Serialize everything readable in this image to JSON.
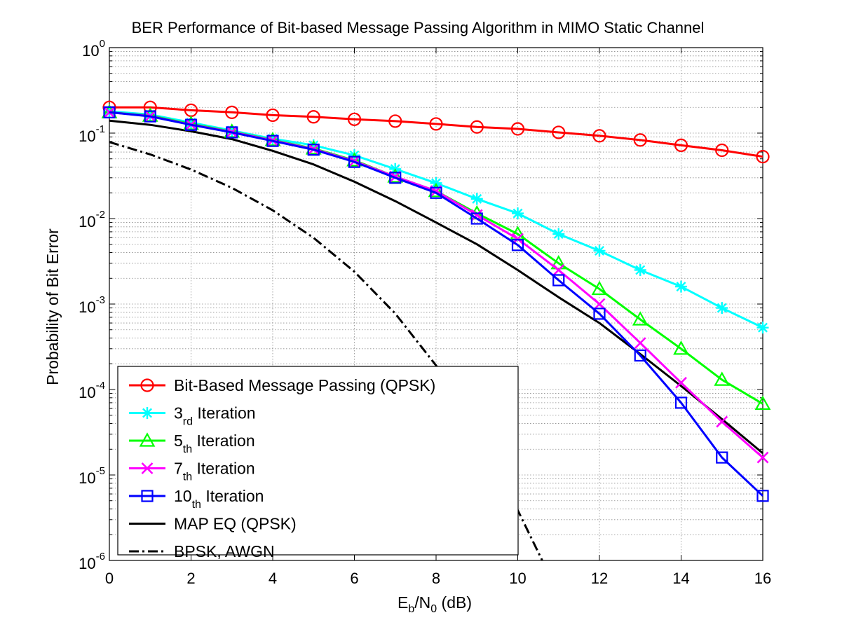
{
  "chart_data": {
    "type": "line",
    "title": "BER Performance of Bit-based Message Passing Algorithm in MIMO Static Channel",
    "xlabel": {
      "main1": "E",
      "sub1": "b",
      "main2": "/N",
      "sub2": "0",
      "main3": " (dB)"
    },
    "ylabel": "Probability of Bit Error",
    "xlim": [
      0,
      16
    ],
    "ylim": [
      1e-06,
      1
    ],
    "y_scale": "log",
    "grid": "major and minor, dotted",
    "x_ticks": [
      {
        "value": 0,
        "label": "0"
      },
      {
        "value": 2,
        "label": "2"
      },
      {
        "value": 4,
        "label": "4"
      },
      {
        "value": 6,
        "label": "6"
      },
      {
        "value": 8,
        "label": "8"
      },
      {
        "value": 10,
        "label": "10"
      },
      {
        "value": 12,
        "label": "12"
      },
      {
        "value": 14,
        "label": "14"
      },
      {
        "value": 16,
        "label": "16"
      }
    ],
    "y_ticks": [
      {
        "value": 1,
        "base": "10",
        "exp": "0"
      },
      {
        "value": 0.1,
        "base": "10",
        "exp": "-1"
      },
      {
        "value": 0.01,
        "base": "10",
        "exp": "-2"
      },
      {
        "value": 0.001,
        "base": "10",
        "exp": "-3"
      },
      {
        "value": 0.0001,
        "base": "10",
        "exp": "-4"
      },
      {
        "value": 1e-05,
        "base": "10",
        "exp": "-5"
      },
      {
        "value": 1e-06,
        "base": "10",
        "exp": "-6"
      }
    ],
    "legend_placement": "lower-left",
    "series": [
      {
        "id": "bbmp",
        "legend_main": "Bit-Based Message Passing (QPSK)",
        "legend_sub": "",
        "legend_tail": "",
        "color": "#ff0000",
        "marker": "circle",
        "dash": "solid",
        "x": [
          0,
          1,
          2,
          3,
          4,
          5,
          6,
          7,
          8,
          9,
          10,
          11,
          12,
          13,
          14,
          15,
          16
        ],
        "y": [
          0.2,
          0.2,
          0.185,
          0.175,
          0.162,
          0.155,
          0.145,
          0.138,
          0.128,
          0.118,
          0.112,
          0.102,
          0.093,
          0.083,
          0.072,
          0.063,
          0.053
        ]
      },
      {
        "id": "it3",
        "legend_main": "3",
        "legend_sub": "rd",
        "legend_tail": " Iteration",
        "color": "#00ffff",
        "marker": "asterisk",
        "dash": "solid",
        "x": [
          0,
          1,
          2,
          3,
          4,
          5,
          6,
          7,
          8,
          9,
          10,
          11,
          12,
          13,
          14,
          15,
          16
        ],
        "y": [
          0.18,
          0.165,
          0.133,
          0.107,
          0.086,
          0.072,
          0.055,
          0.038,
          0.026,
          0.017,
          0.0115,
          0.0066,
          0.0042,
          0.0025,
          0.0016,
          0.0009,
          0.00053
        ]
      },
      {
        "id": "it5",
        "legend_main": "5",
        "legend_sub": "th",
        "legend_tail": " Iteration",
        "color": "#00ff00",
        "marker": "triangle",
        "dash": "solid",
        "x": [
          0,
          1,
          2,
          3,
          4,
          5,
          6,
          7,
          8,
          9,
          10,
          11,
          12,
          13,
          14,
          15,
          16
        ],
        "y": [
          0.175,
          0.16,
          0.128,
          0.104,
          0.083,
          0.066,
          0.048,
          0.031,
          0.021,
          0.0115,
          0.0066,
          0.003,
          0.0015,
          0.00066,
          0.0003,
          0.00013,
          6.8e-05
        ]
      },
      {
        "id": "it7",
        "legend_main": "7",
        "legend_sub": "th",
        "legend_tail": " Iteration",
        "color": "#ff00ff",
        "marker": "x",
        "dash": "solid",
        "x": [
          0,
          1,
          2,
          3,
          4,
          5,
          6,
          7,
          8,
          9,
          10,
          11,
          12,
          13,
          14,
          15,
          16
        ],
        "y": [
          0.175,
          0.158,
          0.126,
          0.103,
          0.082,
          0.065,
          0.047,
          0.031,
          0.021,
          0.011,
          0.0058,
          0.0025,
          0.001,
          0.00035,
          0.00012,
          4.2e-05,
          1.6e-05
        ]
      },
      {
        "id": "it10",
        "legend_main": "10",
        "legend_sub": "th",
        "legend_tail": " Iteration",
        "color": "#0000ff",
        "marker": "square",
        "dash": "solid",
        "x": [
          0,
          1,
          2,
          3,
          4,
          5,
          6,
          7,
          8,
          9,
          10,
          11,
          12,
          13,
          14,
          15,
          16
        ],
        "y": [
          0.175,
          0.157,
          0.125,
          0.102,
          0.081,
          0.064,
          0.046,
          0.03,
          0.02,
          0.01,
          0.0049,
          0.0019,
          0.00077,
          0.00025,
          7e-05,
          1.6e-05,
          5.7e-06
        ]
      },
      {
        "id": "map",
        "legend_main": "MAP EQ (QPSK)",
        "legend_sub": "",
        "legend_tail": "",
        "color": "#000000",
        "marker": "none",
        "dash": "solid",
        "x": [
          0,
          1,
          2,
          3,
          4,
          5,
          6,
          7,
          8,
          9,
          10,
          11,
          12,
          13,
          14,
          15,
          16
        ],
        "y": [
          0.14,
          0.125,
          0.105,
          0.085,
          0.062,
          0.043,
          0.027,
          0.016,
          0.009,
          0.005,
          0.0025,
          0.0012,
          0.0006,
          0.00026,
          0.00011,
          4.5e-05,
          1.8e-05
        ]
      },
      {
        "id": "bpsk",
        "legend_main": "BPSK, AWGN",
        "legend_sub": "",
        "legend_tail": "",
        "color": "#000000",
        "marker": "none",
        "dash": "dashdot",
        "x": [
          0,
          1,
          2,
          3,
          4,
          5,
          6,
          7,
          8,
          9,
          10,
          10.6
        ],
        "y": [
          0.0786,
          0.0563,
          0.0375,
          0.0229,
          0.0125,
          0.00595,
          0.00239,
          0.000773,
          0.000191,
          3.36e-05,
          3.87e-06,
          1e-06
        ]
      }
    ]
  }
}
